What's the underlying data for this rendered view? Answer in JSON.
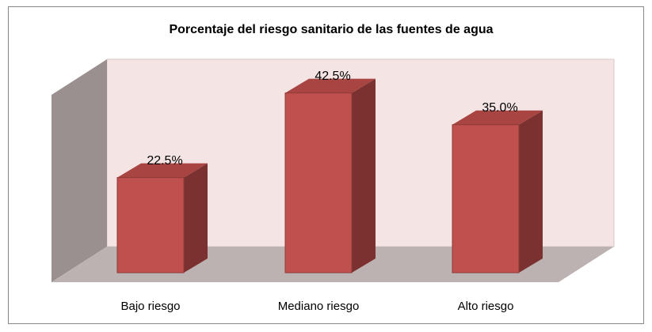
{
  "chart_data": {
    "type": "bar3d",
    "title": "Porcentaje del riesgo sanitario de las fuentes de agua",
    "categories": [
      "Bajo riesgo",
      "Mediano riesgo",
      "Alto riesgo"
    ],
    "values": [
      22.5,
      42.5,
      35.0
    ],
    "value_labels": [
      "22.5%",
      "42.5%",
      "35.0%"
    ],
    "color": "#c0504d"
  }
}
